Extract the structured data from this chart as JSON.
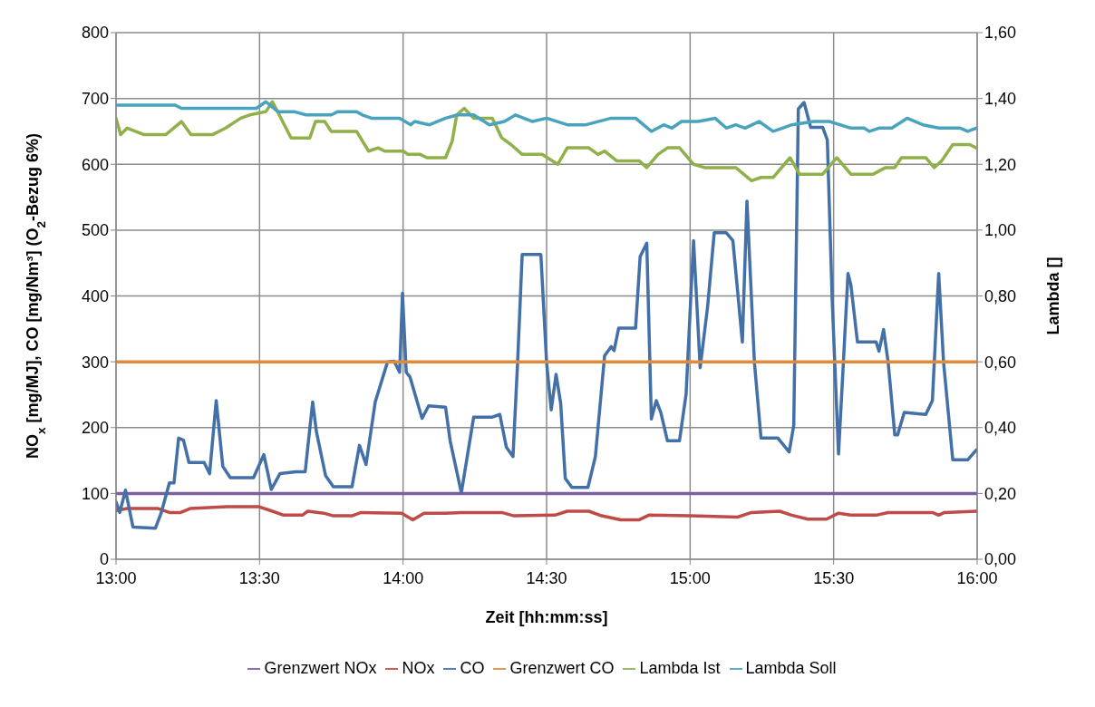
{
  "chart_data": {
    "type": "line",
    "xlabel": "Zeit [hh:mm:ss]",
    "ylabel": "NO$_{x}$ [mg/MJ], CO [mg/Nm³] (O$_{2}$-Bezug 6%)",
    "y2label": "Lambda []",
    "xlim": [
      13,
      16
    ],
    "xticks": [
      {
        "value": 13,
        "label": "13:00"
      },
      {
        "value": 13.5,
        "label": "13:30"
      },
      {
        "value": 14,
        "label": "14:00"
      },
      {
        "value": 14.5,
        "label": "14:30"
      },
      {
        "value": 15,
        "label": "15:00"
      },
      {
        "value": 15.5,
        "label": "15:30"
      },
      {
        "value": 16,
        "label": "16:00"
      }
    ],
    "ylim": [
      0,
      800
    ],
    "yticks": [
      0,
      100,
      200,
      300,
      400,
      500,
      600,
      700,
      800
    ],
    "y2lim": [
      0,
      1.6
    ],
    "y2ticks": [
      {
        "value": 0,
        "label": "0,00"
      },
      {
        "value": 0.2,
        "label": "0,20"
      },
      {
        "value": 0.4,
        "label": "0,40"
      },
      {
        "value": 0.6,
        "label": "0,60"
      },
      {
        "value": 0.8,
        "label": "0,80"
      },
      {
        "value": 1.0,
        "label": "1,00"
      },
      {
        "value": 1.2,
        "label": "1,20"
      },
      {
        "value": 1.4,
        "label": "1,40"
      },
      {
        "value": 1.6,
        "label": "1,60"
      }
    ],
    "grid": true,
    "legend": "bottom",
    "line_style": "solid",
    "series": [
      {
        "name": "Grenzwert NOx",
        "color": "#7d5fa0",
        "x": [
          13,
          16
        ],
        "values": [
          100,
          100
        ]
      },
      {
        "name": "NOx",
        "color": "#be4b48",
        "x": [
          13,
          13.039,
          13.147,
          13.186,
          13.225,
          13.258,
          13.388,
          13.496,
          13.538,
          13.584,
          13.649,
          13.668,
          13.724,
          13.757,
          13.822,
          13.854,
          13.995,
          14.034,
          14.073,
          14.148,
          14.203,
          14.344,
          14.386,
          14.529,
          14.572,
          14.647,
          14.692,
          14.758,
          14.823,
          14.856,
          14.996,
          15.165,
          15.214,
          15.312,
          15.354,
          15.41,
          15.475,
          15.517,
          15.56,
          15.648,
          15.69,
          15.844,
          15.866,
          15.886,
          15.997
        ],
        "values": [
          74,
          77,
          77,
          71,
          71,
          77,
          80,
          80,
          74,
          67,
          67,
          73,
          70,
          66,
          66,
          71,
          70,
          60,
          70,
          70,
          71,
          71,
          66,
          67,
          73,
          73,
          66,
          60,
          60,
          67,
          66,
          64,
          71,
          73,
          67,
          61,
          61,
          70,
          67,
          67,
          71,
          71,
          67,
          71,
          73
        ]
      },
      {
        "name": "CO",
        "color": "#4470a8",
        "x": [
          13,
          13.013,
          13.033,
          13.059,
          13.137,
          13.157,
          13.186,
          13.202,
          13.218,
          13.235,
          13.254,
          13.307,
          13.326,
          13.349,
          13.372,
          13.398,
          13.479,
          13.515,
          13.541,
          13.571,
          13.626,
          13.659,
          13.685,
          13.698,
          13.73,
          13.757,
          13.822,
          13.848,
          13.871,
          13.903,
          13.946,
          13.969,
          13.988,
          13.998,
          14.011,
          14.024,
          14.066,
          14.089,
          14.148,
          14.164,
          14.203,
          14.246,
          14.311,
          14.337,
          14.36,
          14.383,
          14.399,
          14.415,
          14.48,
          14.5,
          14.516,
          14.533,
          14.549,
          14.565,
          14.588,
          14.644,
          14.67,
          14.702,
          14.725,
          14.735,
          14.751,
          14.81,
          14.826,
          14.849,
          14.865,
          14.882,
          14.898,
          14.921,
          14.963,
          14.986,
          15.012,
          15.035,
          15.061,
          15.084,
          15.126,
          15.149,
          15.182,
          15.198,
          15.224,
          15.247,
          15.306,
          15.345,
          15.361,
          15.377,
          15.397,
          15.42,
          15.462,
          15.478,
          15.495,
          15.517,
          15.534,
          15.55,
          15.56,
          15.583,
          15.648,
          15.658,
          15.674,
          15.69,
          15.713,
          15.723,
          15.746,
          15.821,
          15.844,
          15.866,
          15.883,
          15.915,
          15.967,
          15.997
        ],
        "values": [
          87,
          71,
          105,
          49,
          47,
          70,
          116,
          116,
          184,
          181,
          147,
          147,
          130,
          241,
          141,
          124,
          124,
          159,
          106,
          130,
          133,
          133,
          239,
          194,
          127,
          110,
          110,
          173,
          144,
          239,
          300,
          301,
          284,
          404,
          284,
          277,
          214,
          233,
          231,
          180,
          101,
          216,
          216,
          220,
          170,
          156,
          299,
          463,
          463,
          299,
          227,
          281,
          237,
          123,
          109,
          109,
          156,
          309,
          323,
          317,
          351,
          351,
          460,
          480,
          213,
          241,
          223,
          180,
          180,
          251,
          484,
          291,
          384,
          496,
          496,
          484,
          330,
          544,
          299,
          184,
          184,
          163,
          203,
          684,
          694,
          656,
          656,
          637,
          394,
          160,
          299,
          434,
          417,
          330,
          330,
          316,
          349,
          299,
          189,
          189,
          223,
          220,
          241,
          434,
          299,
          151,
          151,
          166
        ]
      },
      {
        "name": "Grenzwert CO",
        "color": "#e08a3a",
        "x": [
          13,
          16
        ],
        "values": [
          300,
          300
        ]
      },
      {
        "name": "Lambda Ist",
        "color": "#8fb04a",
        "axis": "y2",
        "x": [
          13,
          13.016,
          13.039,
          13.098,
          13.173,
          13.228,
          13.261,
          13.336,
          13.382,
          13.434,
          13.466,
          13.522,
          13.545,
          13.61,
          13.675,
          13.695,
          13.727,
          13.75,
          13.773,
          13.838,
          13.88,
          13.913,
          13.936,
          14.001,
          14.017,
          14.06,
          14.083,
          14.148,
          14.171,
          14.187,
          14.213,
          14.246,
          14.311,
          14.344,
          14.376,
          14.415,
          14.484,
          14.539,
          14.572,
          14.647,
          14.679,
          14.702,
          14.745,
          14.823,
          14.849,
          14.888,
          14.921,
          14.963,
          15.012,
          15.051,
          15.159,
          15.214,
          15.247,
          15.289,
          15.348,
          15.381,
          15.462,
          15.511,
          15.56,
          15.638,
          15.681,
          15.713,
          15.736,
          15.821,
          15.85,
          15.876,
          15.915,
          15.974,
          15.997
        ],
        "values": [
          1.34,
          1.29,
          1.31,
          1.29,
          1.29,
          1.33,
          1.29,
          1.29,
          1.31,
          1.34,
          1.35,
          1.36,
          1.39,
          1.28,
          1.28,
          1.33,
          1.33,
          1.3,
          1.3,
          1.3,
          1.24,
          1.25,
          1.24,
          1.24,
          1.23,
          1.23,
          1.22,
          1.22,
          1.27,
          1.35,
          1.37,
          1.34,
          1.34,
          1.28,
          1.26,
          1.23,
          1.23,
          1.2,
          1.25,
          1.25,
          1.23,
          1.24,
          1.21,
          1.21,
          1.19,
          1.23,
          1.25,
          1.25,
          1.2,
          1.19,
          1.19,
          1.15,
          1.16,
          1.16,
          1.22,
          1.17,
          1.17,
          1.22,
          1.17,
          1.17,
          1.19,
          1.19,
          1.22,
          1.22,
          1.19,
          1.21,
          1.26,
          1.26,
          1.25
        ]
      },
      {
        "name": "Lambda Soll",
        "color": "#4aa3bd",
        "axis": "y2",
        "x": [
          13,
          13.205,
          13.228,
          13.489,
          13.522,
          13.564,
          13.62,
          13.662,
          13.75,
          13.773,
          13.838,
          13.858,
          13.89,
          13.988,
          14.027,
          14.04,
          14.092,
          14.148,
          14.19,
          14.246,
          14.301,
          14.353,
          14.392,
          14.451,
          14.5,
          14.572,
          14.637,
          14.725,
          14.81,
          14.865,
          14.908,
          14.937,
          14.97,
          15.028,
          15.087,
          15.126,
          15.159,
          15.191,
          15.24,
          15.289,
          15.322,
          15.354,
          15.429,
          15.485,
          15.56,
          15.606,
          15.625,
          15.658,
          15.703,
          15.756,
          15.811,
          15.866,
          15.941,
          15.967,
          15.997
        ],
        "values": [
          1.38,
          1.38,
          1.37,
          1.37,
          1.39,
          1.36,
          1.36,
          1.35,
          1.35,
          1.36,
          1.36,
          1.35,
          1.34,
          1.34,
          1.32,
          1.33,
          1.32,
          1.34,
          1.35,
          1.35,
          1.32,
          1.33,
          1.35,
          1.33,
          1.34,
          1.32,
          1.32,
          1.34,
          1.34,
          1.3,
          1.32,
          1.31,
          1.33,
          1.33,
          1.34,
          1.31,
          1.32,
          1.31,
          1.33,
          1.3,
          1.31,
          1.32,
          1.33,
          1.33,
          1.31,
          1.31,
          1.3,
          1.31,
          1.31,
          1.34,
          1.32,
          1.31,
          1.31,
          1.3,
          1.31
        ]
      }
    ]
  }
}
